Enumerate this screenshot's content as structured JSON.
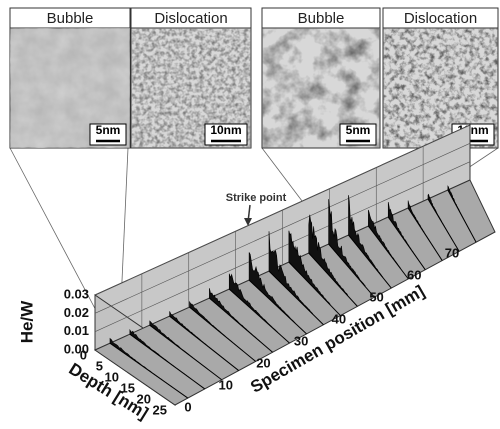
{
  "panels": [
    {
      "label": "Bubble",
      "scale": "5nm"
    },
    {
      "label": "Dislocation",
      "scale": "10nm"
    },
    {
      "label": "Bubble",
      "scale": "5nm"
    },
    {
      "label": "Dislocation",
      "scale": "10nm"
    }
  ],
  "plot": {
    "y_label": "He/W",
    "y_ticks": [
      "0.03",
      "0.02",
      "0.01",
      "0.00"
    ],
    "depth_label": "Depth [nm]",
    "depth_ticks": [
      0,
      5,
      10,
      15,
      20,
      25
    ],
    "position_label": "Specimen position [mm]",
    "position_ticks": [
      0,
      10,
      20,
      30,
      40,
      50,
      60,
      70
    ],
    "annotation": "Strike point"
  }
}
